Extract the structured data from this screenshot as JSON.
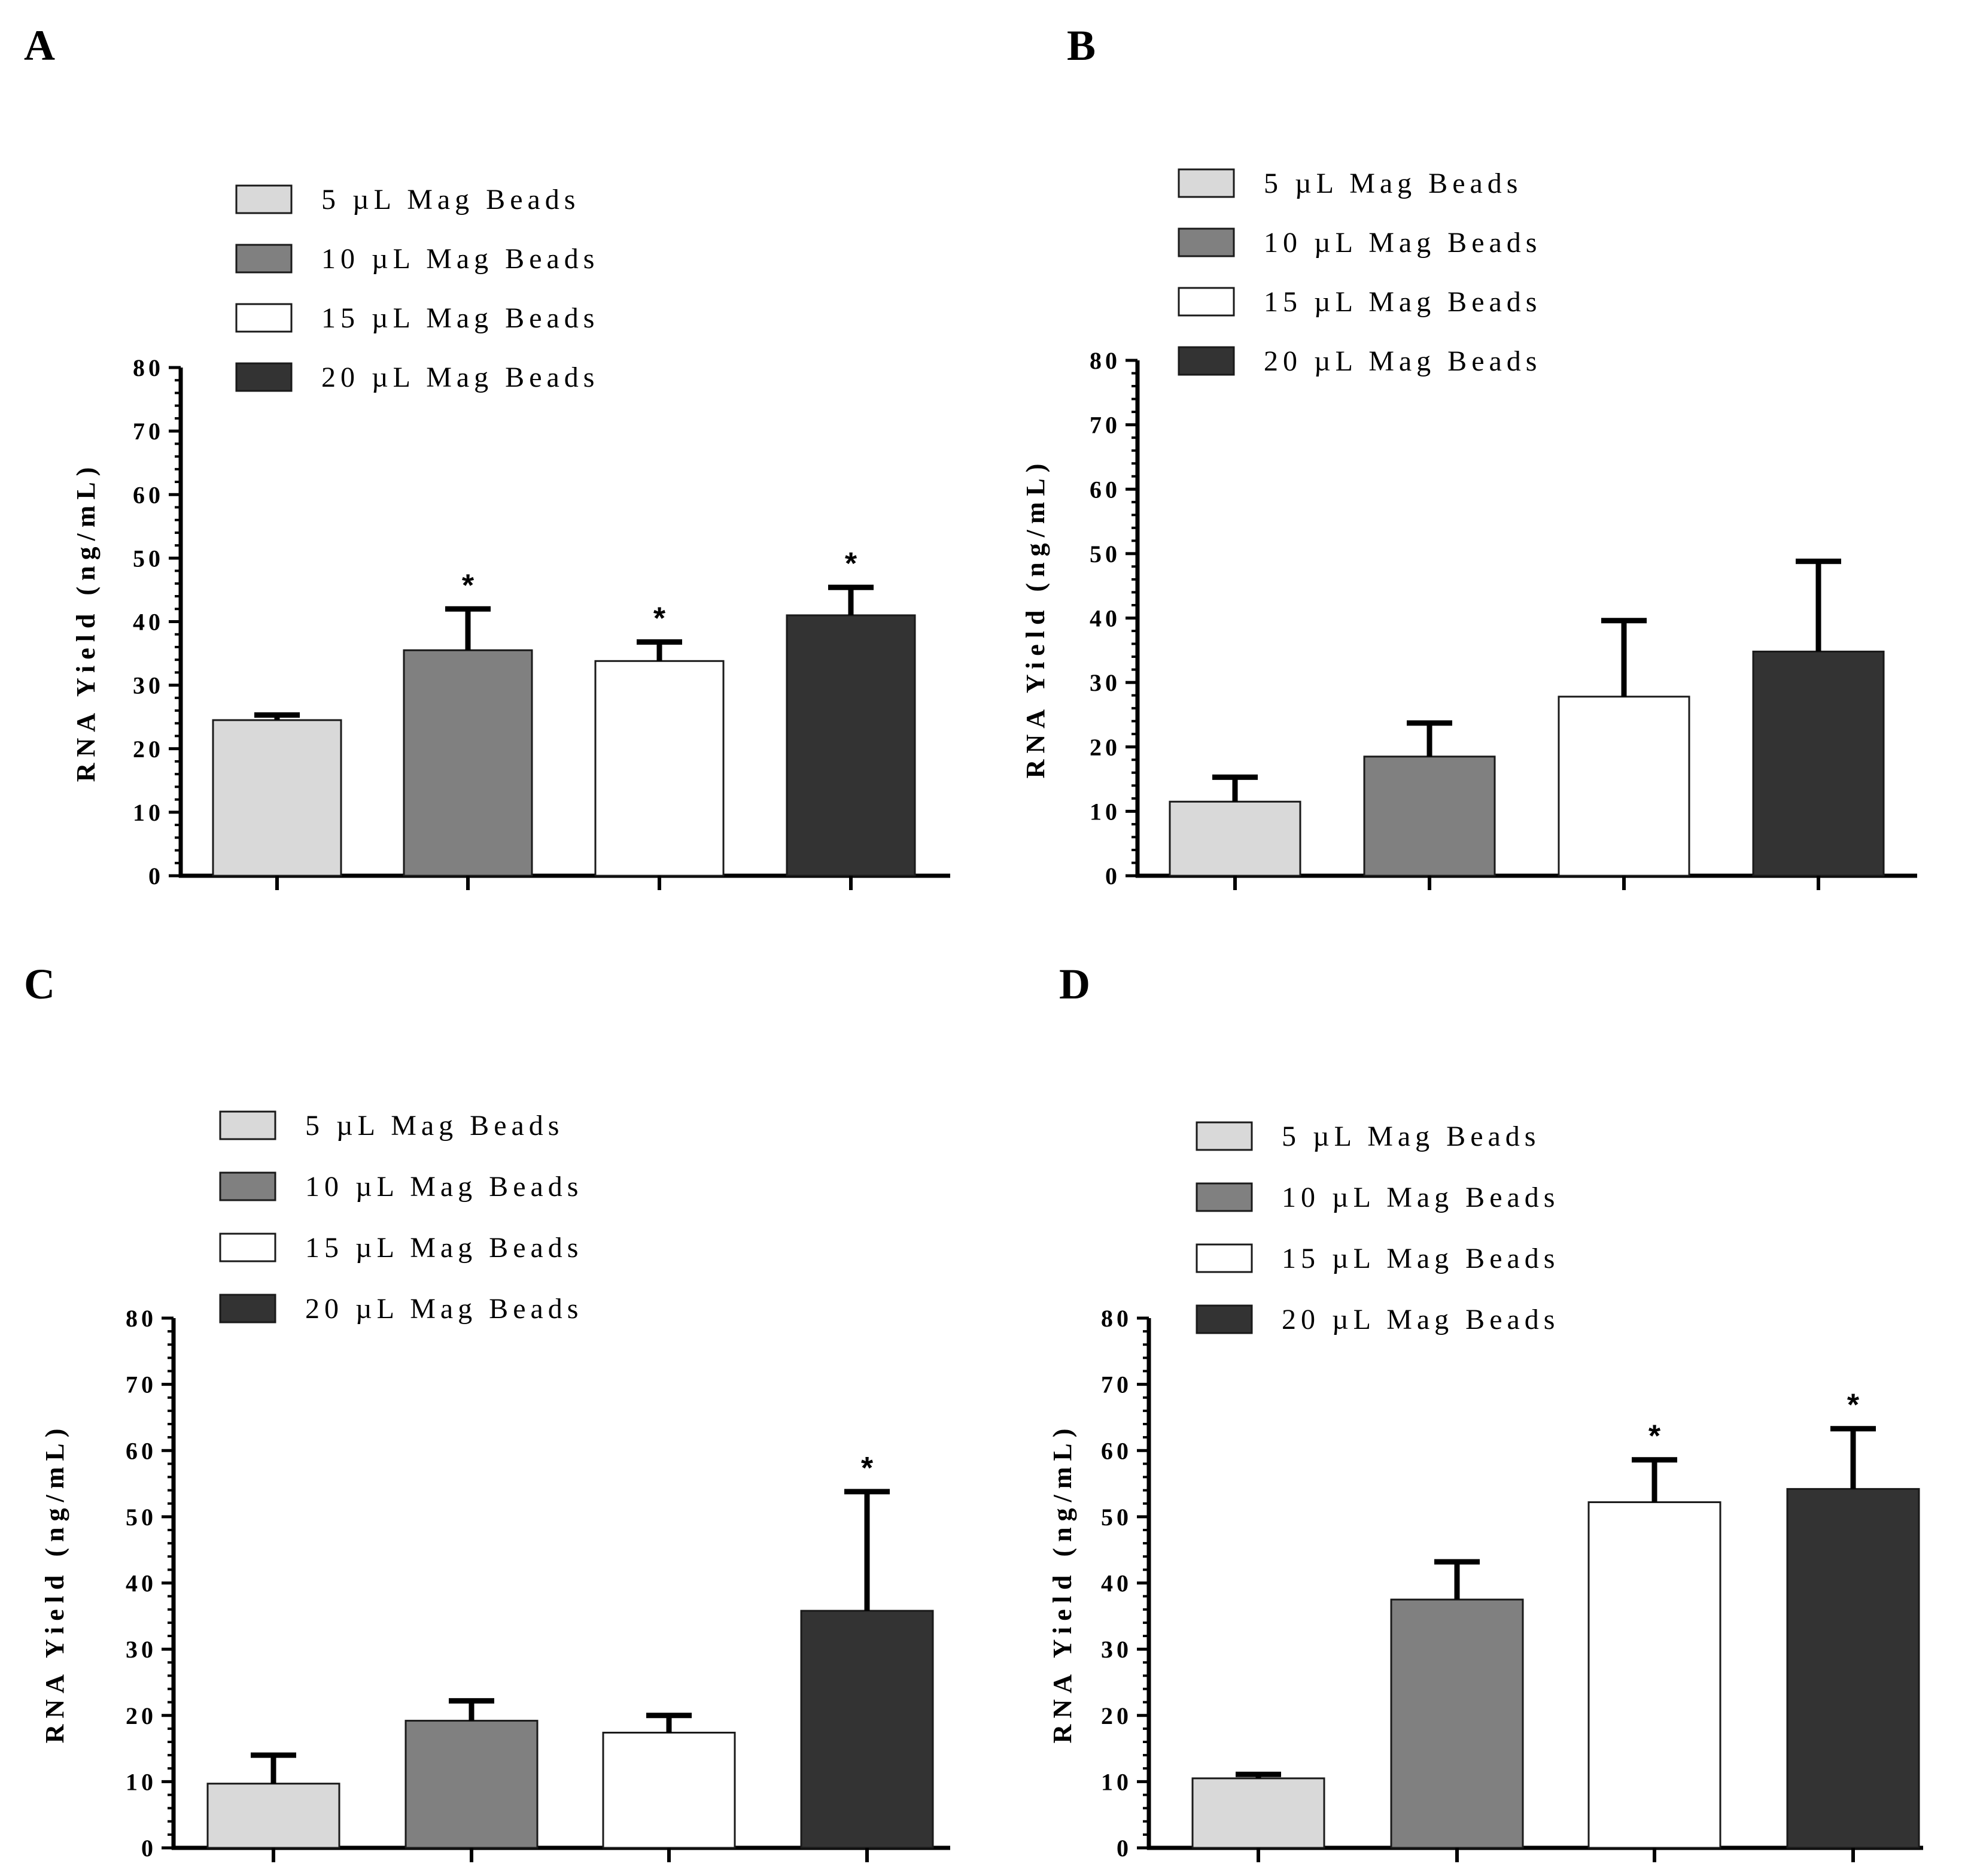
{
  "figure": {
    "y_axis_label": "RNA Yield (ng/mL)",
    "ticks": [
      0,
      10,
      20,
      30,
      40,
      50,
      60,
      70,
      80
    ],
    "legend": [
      {
        "label": "5 µL Mag Beads",
        "color": "#d9d9d9"
      },
      {
        "label": "10 µL Mag Beads",
        "color": "#808080"
      },
      {
        "label": "15 µL Mag Beads",
        "color": "#ffffff"
      },
      {
        "label": "20 µL Mag Beads",
        "color": "#333333"
      }
    ]
  },
  "chart_data": [
    {
      "type": "bar",
      "panel": "A",
      "categories": [
        "5 µL Mag Beads",
        "10 µL Mag Beads",
        "15 µL Mag Beads",
        "20 µL Mag Beads"
      ],
      "values": [
        24.5,
        35.5,
        33.8,
        41.0
      ],
      "errors": [
        0.8,
        6.5,
        3.0,
        4.4
      ],
      "significance": [
        "",
        "*",
        "*",
        "*"
      ],
      "ylabel": "RNA Yield (ng/mL)",
      "ylim": [
        0,
        80
      ],
      "legend_position": "top-left"
    },
    {
      "type": "bar",
      "panel": "B",
      "categories": [
        "5 µL Mag Beads",
        "10 µL Mag Beads",
        "15 µL Mag Beads",
        "20 µL Mag Beads"
      ],
      "values": [
        11.5,
        18.5,
        27.8,
        34.8
      ],
      "errors": [
        3.8,
        5.2,
        11.8,
        14.0
      ],
      "significance": [
        "",
        "",
        "",
        ""
      ],
      "ylabel": "RNA Yield (ng/mL)",
      "ylim": [
        0,
        80
      ],
      "legend_position": "top-left"
    },
    {
      "type": "bar",
      "panel": "C",
      "categories": [
        "5 µL Mag Beads",
        "10 µL Mag Beads",
        "15 µL Mag Beads",
        "20 µL Mag Beads"
      ],
      "values": [
        9.7,
        19.2,
        17.4,
        35.8
      ],
      "errors": [
        4.3,
        3.0,
        2.6,
        18.0
      ],
      "significance": [
        "",
        "",
        "",
        "*"
      ],
      "ylabel": "RNA Yield (ng/mL)",
      "ylim": [
        0,
        80
      ],
      "legend_position": "top-left"
    },
    {
      "type": "bar",
      "panel": "D",
      "categories": [
        "5 µL Mag Beads",
        "10 µL Mag Beads",
        "15 µL Mag Beads",
        "20 µL Mag Beads"
      ],
      "values": [
        10.5,
        37.5,
        52.2,
        54.2
      ],
      "errors": [
        0.6,
        5.7,
        6.4,
        9.1
      ],
      "significance": [
        "",
        "",
        "*",
        "*"
      ],
      "ylabel": "RNA Yield (ng/mL)",
      "ylim": [
        0,
        80
      ],
      "legend_position": "top-left"
    }
  ]
}
